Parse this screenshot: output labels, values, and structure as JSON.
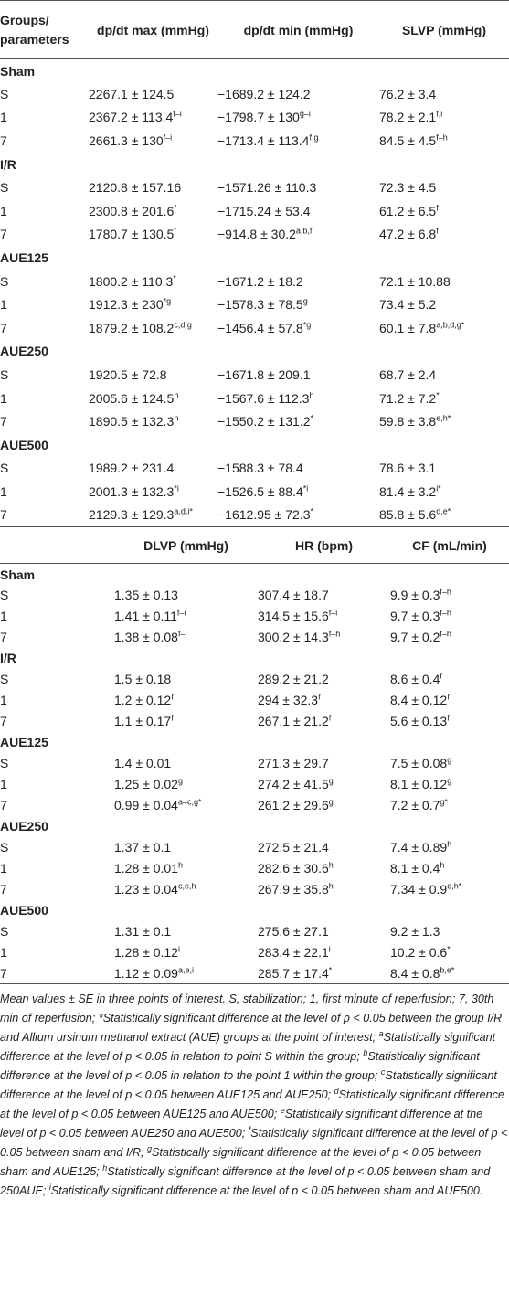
{
  "table1": {
    "header": [
      "Groups/ parameters",
      "dp/dt max (mmHg)",
      "dp/dt min (mmHg)",
      "SLVP (mmHg)"
    ],
    "groups": [
      {
        "name": "Sham",
        "rows": [
          {
            "label": "S",
            "cells": [
              {
                "text": "2267.1 ± 124.5"
              },
              {
                "text": "−1689.2 ± 124.2"
              },
              {
                "text": "76.2 ± 3.4"
              }
            ]
          },
          {
            "label": "1",
            "cells": [
              {
                "text": "2367.2 ± 113.4",
                "sup": "f–i"
              },
              {
                "text": "−1798.7 ± 130",
                "sup": "g–i"
              },
              {
                "text": "78.2 ± 2.1",
                "sup": "f,i"
              }
            ]
          },
          {
            "label": "7",
            "cells": [
              {
                "text": "2661.3 ± 130",
                "sup": "f–i"
              },
              {
                "text": "−1713.4 ± 113.4",
                "sup": "f,g"
              },
              {
                "text": "84.5 ± 4.5",
                "sup": "f–h"
              }
            ]
          }
        ]
      },
      {
        "name": "I/R",
        "rows": [
          {
            "label": "S",
            "cells": [
              {
                "text": "2120.8 ± 157.16"
              },
              {
                "text": "−1571.26 ± 110.3"
              },
              {
                "text": "72.3 ± 4.5"
              }
            ]
          },
          {
            "label": "1",
            "cells": [
              {
                "text": "2300.8 ± 201.6",
                "sup": "f"
              },
              {
                "text": "−1715.24 ± 53.4"
              },
              {
                "text": "61.2 ± 6.5",
                "sup": "f"
              }
            ]
          },
          {
            "label": "7",
            "cells": [
              {
                "text": "1780.7 ± 130.5",
                "sup": "f"
              },
              {
                "text": "−914.8 ± 30.2",
                "sup": "a,b,f"
              },
              {
                "text": "47.2 ± 6.8",
                "sup": "f"
              }
            ]
          }
        ]
      },
      {
        "name": "AUE125",
        "rows": [
          {
            "label": "S",
            "cells": [
              {
                "text": "1800.2 ± 110.3",
                "sup": "*"
              },
              {
                "text": "−1671.2 ± 18.2"
              },
              {
                "text": "72.1 ± 10.88"
              }
            ]
          },
          {
            "label": "1",
            "cells": [
              {
                "text": "1912.3 ± 230",
                "sup": "*g"
              },
              {
                "text": "−1578.3 ± 78.5",
                "sup": "g"
              },
              {
                "text": "73.4 ± 5.2"
              }
            ]
          },
          {
            "label": "7",
            "cells": [
              {
                "text": "1879.2 ± 108.2",
                "sup": "c,d,g"
              },
              {
                "text": "−1456.4 ± 57.8",
                "sup": "*g"
              },
              {
                "text": "60.1 ± 7.8",
                "sup": "a,b,d,g*"
              }
            ]
          }
        ]
      },
      {
        "name": "AUE250",
        "rows": [
          {
            "label": "S",
            "cells": [
              {
                "text": "1920.5 ± 72.8"
              },
              {
                "text": "−1671.8 ± 209.1"
              },
              {
                "text": "68.7 ± 2.4"
              }
            ]
          },
          {
            "label": "1",
            "cells": [
              {
                "text": "2005.6 ± 124.5",
                "sup": "h"
              },
              {
                "text": "−1567.6 ± 112.3",
                "sup": "h"
              },
              {
                "text": "71.2 ± 7.2",
                "sup": "*"
              }
            ]
          },
          {
            "label": "7",
            "cells": [
              {
                "text": "1890.5 ± 132.3",
                "sup": "h"
              },
              {
                "text": "−1550.2 ± 131.2",
                "sup": "*"
              },
              {
                "text": "59.8 ± 3.8",
                "sup": "e,h*"
              }
            ]
          }
        ]
      },
      {
        "name": "AUE500",
        "rows": [
          {
            "label": "S",
            "cells": [
              {
                "text": "1989.2 ± 231.4"
              },
              {
                "text": "−1588.3 ± 78.4"
              },
              {
                "text": "78.6 ± 3.1"
              }
            ]
          },
          {
            "label": "1",
            "cells": [
              {
                "text": "2001.3 ± 132.3",
                "sup": "*i"
              },
              {
                "text": "−1526.5 ± 88.4",
                "sup": "*i"
              },
              {
                "text": "81.4 ± 3.2",
                "sup": "i*"
              }
            ]
          },
          {
            "label": "7",
            "cells": [
              {
                "text": "2129.3 ± 129.3",
                "sup": "a,d,i*"
              },
              {
                "text": "−1612.95 ± 72.3",
                "sup": "*"
              },
              {
                "text": "85.8 ± 5.6",
                "sup": "d,e*"
              }
            ]
          }
        ]
      }
    ]
  },
  "table2": {
    "header": [
      "DLVP (mmHg)",
      "HR (bpm)",
      "CF (mL/min)"
    ],
    "groups": [
      {
        "name": "Sham",
        "rows": [
          {
            "label": "S",
            "cells": [
              {
                "text": "1.35 ± 0.13"
              },
              {
                "text": "307.4 ± 18.7"
              },
              {
                "text": "9.9 ± 0.3",
                "sup": "f–h"
              }
            ]
          },
          {
            "label": "1",
            "cells": [
              {
                "text": "1.41 ± 0.11",
                "sup": "f–i"
              },
              {
                "text": "314.5 ± 15.6",
                "sup": "f–i"
              },
              {
                "text": "9.7 ± 0.3",
                "sup": "f–h"
              }
            ]
          },
          {
            "label": "7",
            "cells": [
              {
                "text": "1.38 ± 0.08",
                "sup": "f–i"
              },
              {
                "text": "300.2 ± 14.3",
                "sup": "f–h"
              },
              {
                "text": "9.7 ± 0.2",
                "sup": "f–h"
              }
            ]
          }
        ]
      },
      {
        "name": "I/R",
        "rows": [
          {
            "label": "S",
            "cells": [
              {
                "text": "1.5 ± 0.18"
              },
              {
                "text": "289.2 ± 21.2"
              },
              {
                "text": "8.6 ± 0.4",
                "sup": "f"
              }
            ]
          },
          {
            "label": "1",
            "cells": [
              {
                "text": "1.2 ± 0.12",
                "sup": "f"
              },
              {
                "text": "294 ± 32.3",
                "sup": "f"
              },
              {
                "text": "8.4 ± 0.12",
                "sup": "f"
              }
            ]
          },
          {
            "label": "7",
            "cells": [
              {
                "text": "1.1 ± 0.17",
                "sup": "f"
              },
              {
                "text": "267.1 ± 21.2",
                "sup": "f"
              },
              {
                "text": "5.6 ± 0.13",
                "sup": "f"
              }
            ]
          }
        ]
      },
      {
        "name": "AUE125",
        "rows": [
          {
            "label": "S",
            "cells": [
              {
                "text": "1.4 ± 0.01"
              },
              {
                "text": "271.3 ± 29.7"
              },
              {
                "text": "7.5 ± 0.08",
                "sup": "g"
              }
            ]
          },
          {
            "label": "1",
            "cells": [
              {
                "text": "1.25 ± 0.02",
                "sup": "g"
              },
              {
                "text": "274.2 ± 41.5",
                "sup": "g"
              },
              {
                "text": "8.1 ± 0.12",
                "sup": "g"
              }
            ]
          },
          {
            "label": "7",
            "cells": [
              {
                "text": "0.99 ± 0.04",
                "sup": "a–c,g*"
              },
              {
                "text": "261.2 ± 29.6",
                "sup": "g"
              },
              {
                "text": "7.2 ± 0.7",
                "sup": "g*"
              }
            ]
          }
        ]
      },
      {
        "name": "AUE250",
        "rows": [
          {
            "label": "S",
            "cells": [
              {
                "text": "1.37 ± 0.1"
              },
              {
                "text": "272.5 ± 21.4"
              },
              {
                "text": "7.4 ± 0.89",
                "sup": "h"
              }
            ]
          },
          {
            "label": "1",
            "cells": [
              {
                "text": "1.28 ± 0.01",
                "sup": "h"
              },
              {
                "text": "282.6 ± 30.6",
                "sup": "h"
              },
              {
                "text": "8.1 ± 0.4",
                "sup": "h"
              }
            ]
          },
          {
            "label": "7",
            "cells": [
              {
                "text": "1.23 ± 0.04",
                "sup": "c,e,h"
              },
              {
                "text": "267.9 ± 35.8",
                "sup": "h"
              },
              {
                "text": "7.34 ± 0.9",
                "sup": "e,h*"
              }
            ]
          }
        ]
      },
      {
        "name": "AUE500",
        "rows": [
          {
            "label": "S",
            "cells": [
              {
                "text": "1.31 ± 0.1"
              },
              {
                "text": "275.6 ± 27.1"
              },
              {
                "text": "9.2 ± 1.3"
              }
            ]
          },
          {
            "label": "1",
            "cells": [
              {
                "text": "1.28 ± 0.12",
                "sup": "i"
              },
              {
                "text": "283.4 ± 22.1",
                "sup": "i"
              },
              {
                "text": "10.2 ± 0.6",
                "sup": "*"
              }
            ]
          },
          {
            "label": "7",
            "cells": [
              {
                "text": "1.12 ± 0.09",
                "sup": "a,e,i"
              },
              {
                "text": "285.7 ± 17.4",
                "sup": "*"
              },
              {
                "text": "8.4 ± 0.8",
                "sup": "b,e*"
              }
            ]
          }
        ]
      }
    ]
  },
  "footnote": [
    {
      "text": "Mean values ± SE in three points of interest. S, stabilization; 1, first minute of reperfusion; 7, 30th min of reperfusion; *Statistically significant difference at the level of p < 0.05 between the group I/R and Allium ursinum methanol extract (AUE) groups at the point of interest; "
    },
    {
      "sup": "a",
      "text": "Statistically significant difference at the level of p < 0.05 in relation to point S within the group; "
    },
    {
      "sup": "b",
      "text": "Statistically significant difference at the level of p < 0.05 in relation to the point 1 within the group; "
    },
    {
      "sup": "c",
      "text": "Statistically significant difference at the level of p < 0.05 between AUE125 and AUE250; "
    },
    {
      "sup": "d",
      "text": "Statistically significant difference at the level of p < 0.05 between AUE125 and AUE500; "
    },
    {
      "sup": "e",
      "text": "Statistically significant difference at the level of p < 0.05 between AUE250 and AUE500; "
    },
    {
      "sup": "f",
      "text": "Statistically significant difference at the level of p < 0.05 between sham and I/R; "
    },
    {
      "sup": "g",
      "text": "Statistically significant difference at the level of p < 0.05 between sham and AUE125; "
    },
    {
      "sup": "h",
      "text": "Statistically significant difference at the level of p < 0.05 between sham and 250AUE; "
    },
    {
      "sup": "i",
      "text": "Statistically significant difference at the level of p < 0.05 between sham and AUE500."
    }
  ]
}
